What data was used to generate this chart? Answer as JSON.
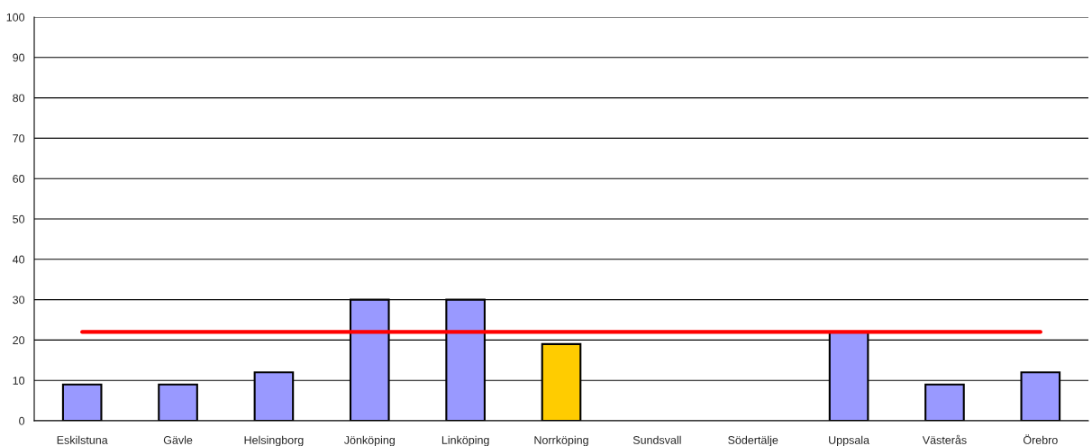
{
  "chart_data": {
    "type": "bar",
    "categories": [
      "Eskilstuna",
      "Gävle",
      "Helsingborg",
      "Jönköping",
      "Linköping",
      "Norrköping",
      "Sundsvall",
      "Södertälje",
      "Uppsala",
      "Västerås",
      "Örebro"
    ],
    "values": [
      9,
      9,
      12,
      30,
      30,
      19,
      null,
      null,
      22,
      9,
      12
    ],
    "colors": [
      "#9999ff",
      "#9999ff",
      "#9999ff",
      "#9999ff",
      "#9999ff",
      "#ffcc00",
      "#9999ff",
      "#9999ff",
      "#9999ff",
      "#9999ff",
      "#9999ff"
    ],
    "ylim": [
      0,
      100
    ],
    "yticks": [
      0,
      10,
      20,
      30,
      40,
      50,
      60,
      70,
      80,
      90,
      100
    ],
    "grid": "y",
    "legend": false,
    "ref_lines": [
      {
        "axis": "y",
        "value": 22,
        "color": "#ff0000",
        "line_style": "solid"
      }
    ]
  }
}
